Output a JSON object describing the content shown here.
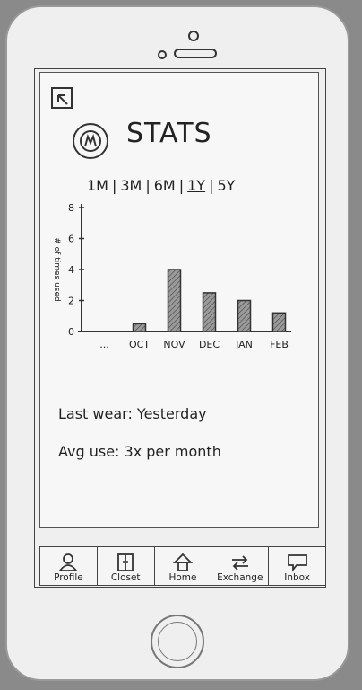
{
  "header": {
    "back_icon": "back-arrow-icon",
    "title": "STATS"
  },
  "ranges": [
    {
      "label": "1M"
    },
    {
      "label": "3M"
    },
    {
      "label": "6M"
    },
    {
      "label": "1Y",
      "selected": true
    },
    {
      "label": "5Y"
    }
  ],
  "chart_data": {
    "type": "bar",
    "ylabel": "# of times used",
    "categories": [
      "...",
      "OCT",
      "NOV",
      "DEC",
      "JAN",
      "FEB"
    ],
    "values": [
      0,
      0.5,
      4,
      2.5,
      2,
      1.2
    ],
    "yticks": [
      "0",
      "2",
      "4",
      "6",
      "8"
    ],
    "ylim": [
      0,
      8
    ],
    "grid": false
  },
  "stats": {
    "last_wear": "Last wear: Yesterday",
    "avg_use": "Avg use: 3x per month"
  },
  "tabs": [
    {
      "label": "Profile",
      "icon": "person-icon"
    },
    {
      "label": "Closet",
      "icon": "closet-icon"
    },
    {
      "label": "Home",
      "icon": "home-icon"
    },
    {
      "label": "Exchange",
      "icon": "exchange-icon"
    },
    {
      "label": "Inbox",
      "icon": "inbox-icon"
    }
  ],
  "colors": {
    "ink": "#222222",
    "paper": "#f7f7f7",
    "bar_fill": "#9a9a9a"
  }
}
